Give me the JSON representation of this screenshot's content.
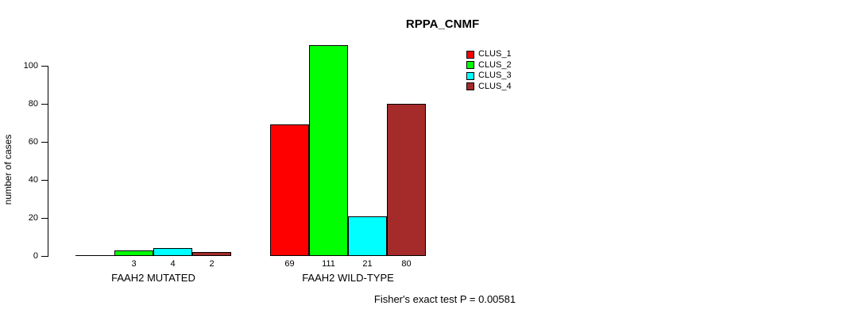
{
  "title": "RPPA_CNMF",
  "ylabel": "number of cases",
  "chart_data": {
    "type": "bar",
    "title": "RPPA_CNMF",
    "xlabel": "",
    "ylabel": "number of cases",
    "ylim": [
      0,
      100
    ],
    "yticks": [
      0,
      20,
      40,
      60,
      80,
      100
    ],
    "grid": false,
    "legend_position": "top-right",
    "categories": [
      "FAAH2 MUTATED",
      "FAAH2 WILD-TYPE"
    ],
    "series": [
      {
        "name": "CLUS_1",
        "color": "#FF0000",
        "values": [
          0,
          69
        ]
      },
      {
        "name": "CLUS_2",
        "color": "#00FF00",
        "values": [
          3,
          111
        ]
      },
      {
        "name": "CLUS_3",
        "color": "#00FFFF",
        "values": [
          4,
          21
        ]
      },
      {
        "name": "CLUS_4",
        "color": "#A52A2A",
        "values": [
          2,
          80
        ]
      }
    ],
    "bar_value_labels": {
      "shown": true,
      "hide_zero": true
    },
    "annotation": "Fisher's exact test P = 0.00581"
  },
  "legend": {
    "items": [
      {
        "label": "CLUS_1",
        "color": "#FF0000"
      },
      {
        "label": "CLUS_2",
        "color": "#00FF00"
      },
      {
        "label": "CLUS_3",
        "color": "#00FFFF"
      },
      {
        "label": "CLUS_4",
        "color": "#A52A2A"
      }
    ]
  },
  "footer": "Fisher's exact test P = 0.00581"
}
